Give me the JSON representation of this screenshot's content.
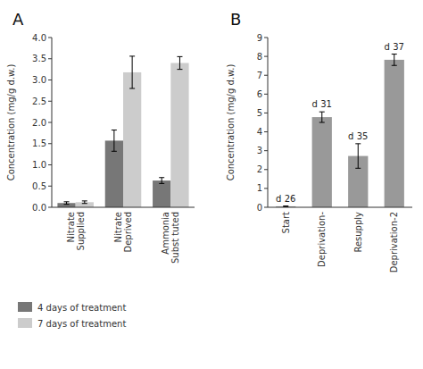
{
  "chart_data": [
    {
      "type": "bar",
      "title": "A",
      "categories": [
        "Nitrate\nSupplied",
        "Nitrate\nDeprived",
        "Ammonia\nSubst tuted"
      ],
      "series": [
        {
          "name": "4 days of treatment",
          "color": "#777777",
          "values": [
            0.1,
            1.57,
            0.63
          ],
          "errors": [
            0.03,
            0.25,
            0.07
          ]
        },
        {
          "name": "7 days of treatment",
          "color": "#cccccc",
          "values": [
            0.12,
            3.18,
            3.4
          ],
          "errors": [
            0.03,
            0.38,
            0.15
          ]
        }
      ],
      "y_label": "Concentration (mg/g d.w.)",
      "ylim": [
        0,
        4
      ],
      "yticks": [
        {
          "value": 0,
          "label": "0.0"
        },
        0.5,
        {
          "value": 1,
          "label": "1.0"
        },
        1.5,
        {
          "value": 2,
          "label": "2.0"
        },
        2.5,
        {
          "value": 3,
          "label": "3.0"
        },
        3.5,
        {
          "value": 4,
          "label": "4.0"
        }
      ],
      "grid": false,
      "legend": "bottom"
    },
    {
      "type": "bar",
      "title": "B",
      "categories": [
        "Start",
        "Deprivation-",
        "Resupply",
        "Deprivation-2"
      ],
      "values": [
        0.05,
        4.78,
        2.72,
        7.82
      ],
      "errors": [
        0.02,
        0.28,
        0.65,
        0.3
      ],
      "color": "#999999",
      "y_label": "Concentration (mg/g d.w.)",
      "ylim": [
        0,
        9
      ],
      "yticks": [
        0,
        1,
        2,
        3,
        4,
        5,
        6,
        7,
        8,
        9
      ],
      "annotations": [
        "d 26",
        "d 31",
        "d 35",
        "d 37"
      ],
      "grid": false
    }
  ]
}
